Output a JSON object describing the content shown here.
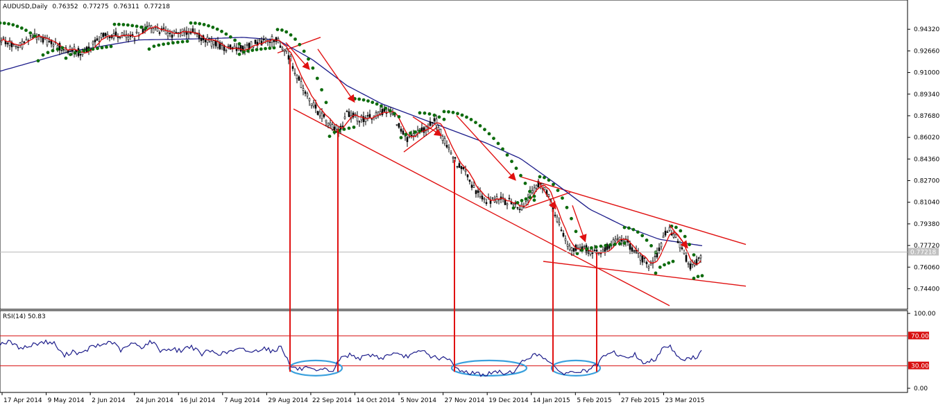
{
  "chart_data": [
    {
      "type": "candlestick",
      "header": {
        "symbol": "AUDUSD,Daily",
        "open": "0.76352",
        "high": "0.77275",
        "low": "0.76311",
        "close": "0.77218"
      },
      "last_price_tag": "0.77218",
      "y_ticks": [
        "0.94320",
        "0.92660",
        "0.91000",
        "0.89340",
        "0.87680",
        "0.86020",
        "0.84360",
        "0.82700",
        "0.81040",
        "0.79380",
        "0.77720",
        "0.76060",
        "0.74400"
      ],
      "ylim": [
        0.7304,
        0.9614
      ],
      "x_ticks": [
        "17 Apr 2014",
        "9 May 2014",
        "2 Jun 2014",
        "24 Jun 2014",
        "16 Jul 2014",
        "7 Aug 2014",
        "29 Aug 2014",
        "22 Sep 2014",
        "14 Oct 2014",
        "5 Nov 2014",
        "27 Nov 2014",
        "19 Dec 2014",
        "14 Jan 2015",
        "5 Feb 2015",
        "27 Feb 2015",
        "23 Mar 2015"
      ],
      "price_anchors": [
        [
          0,
          0.936
        ],
        [
          25,
          0.929
        ],
        [
          48,
          0.938
        ],
        [
          72,
          0.933
        ],
        [
          95,
          0.928
        ],
        [
          120,
          0.925
        ],
        [
          145,
          0.937
        ],
        [
          165,
          0.939
        ],
        [
          190,
          0.936
        ],
        [
          210,
          0.945
        ],
        [
          232,
          0.942
        ],
        [
          252,
          0.939
        ],
        [
          275,
          0.942
        ],
        [
          300,
          0.934
        ],
        [
          325,
          0.929
        ],
        [
          350,
          0.928
        ],
        [
          372,
          0.933
        ],
        [
          395,
          0.936
        ],
        [
          410,
          0.929
        ],
        [
          418,
          0.921
        ],
        [
          430,
          0.905
        ],
        [
          445,
          0.89
        ],
        [
          460,
          0.879
        ],
        [
          475,
          0.87
        ],
        [
          490,
          0.866
        ],
        [
          500,
          0.878
        ],
        [
          520,
          0.874
        ],
        [
          540,
          0.876
        ],
        [
          555,
          0.882
        ],
        [
          570,
          0.875
        ],
        [
          585,
          0.858
        ],
        [
          600,
          0.862
        ],
        [
          615,
          0.868
        ],
        [
          628,
          0.873
        ],
        [
          640,
          0.858
        ],
        [
          655,
          0.843
        ],
        [
          670,
          0.833
        ],
        [
          685,
          0.82
        ],
        [
          700,
          0.812
        ],
        [
          720,
          0.812
        ],
        [
          740,
          0.81
        ],
        [
          752,
          0.806
        ],
        [
          765,
          0.817
        ],
        [
          778,
          0.825
        ],
        [
          790,
          0.817
        ],
        [
          800,
          0.8
        ],
        [
          812,
          0.787
        ],
        [
          822,
          0.774
        ],
        [
          835,
          0.777
        ],
        [
          850,
          0.773
        ],
        [
          862,
          0.771
        ],
        [
          875,
          0.776
        ],
        [
          890,
          0.782
        ],
        [
          905,
          0.779
        ],
        [
          920,
          0.77
        ],
        [
          935,
          0.762
        ],
        [
          948,
          0.77
        ],
        [
          962,
          0.79
        ],
        [
          975,
          0.784
        ],
        [
          985,
          0.77
        ],
        [
          995,
          0.762
        ],
        [
          1005,
          0.765
        ],
        [
          1012,
          0.772
        ]
      ],
      "sma_anchors": [
        [
          0,
          0.911
        ],
        [
          100,
          0.926
        ],
        [
          200,
          0.935
        ],
        [
          300,
          0.936
        ],
        [
          350,
          0.937
        ],
        [
          400,
          0.935
        ],
        [
          450,
          0.92
        ],
        [
          500,
          0.9
        ],
        [
          550,
          0.886
        ],
        [
          600,
          0.876
        ],
        [
          650,
          0.866
        ],
        [
          700,
          0.856
        ],
        [
          750,
          0.844
        ],
        [
          800,
          0.825
        ],
        [
          850,
          0.805
        ],
        [
          900,
          0.792
        ],
        [
          950,
          0.782
        ],
        [
          1012,
          0.777
        ]
      ],
      "sar_segments": [
        {
          "x": [
            0,
            50
          ],
          "v": [
            0.948,
            0.938
          ],
          "side": "above"
        },
        {
          "x": [
            55,
            90
          ],
          "v": [
            0.919,
            0.929
          ],
          "side": "below"
        },
        {
          "x": [
            95,
            160
          ],
          "v": [
            0.921,
            0.93
          ],
          "side": "below"
        },
        {
          "x": [
            165,
            210
          ],
          "v": [
            0.947,
            0.944
          ],
          "side": "above"
        },
        {
          "x": [
            215,
            270
          ],
          "v": [
            0.928,
            0.934
          ],
          "side": "below"
        },
        {
          "x": [
            275,
            345
          ],
          "v": [
            0.948,
            0.932
          ],
          "side": "above"
        },
        {
          "x": [
            345,
            395
          ],
          "v": [
            0.924,
            0.929
          ],
          "side": "below"
        },
        {
          "x": [
            400,
            470
          ],
          "v": [
            0.943,
            0.887
          ],
          "side": "above"
        },
        {
          "x": [
            475,
            510
          ],
          "v": [
            0.861,
            0.868
          ],
          "side": "below"
        },
        {
          "x": [
            505,
            575
          ],
          "v": [
            0.89,
            0.876
          ],
          "side": "above"
        },
        {
          "x": [
            578,
            605
          ],
          "v": [
            0.86,
            0.865
          ],
          "side": "below"
        },
        {
          "x": [
            605,
            640
          ],
          "v": [
            0.879,
            0.874
          ],
          "side": "above"
        },
        {
          "x": [
            640,
            770
          ],
          "v": [
            0.88,
            0.812
          ],
          "side": "above"
        },
        {
          "x": [
            740,
            770
          ],
          "v": [
            0.806,
            0.815
          ],
          "side": "below"
        },
        {
          "x": [
            778,
            830
          ],
          "v": [
            0.83,
            0.788
          ],
          "side": "above"
        },
        {
          "x": [
            832,
            900
          ],
          "v": [
            0.771,
            0.779
          ],
          "side": "below"
        },
        {
          "x": [
            900,
            945
          ],
          "v": [
            0.791,
            0.772
          ],
          "side": "above"
        },
        {
          "x": [
            945,
            970
          ],
          "v": [
            0.756,
            0.765
          ],
          "side": "below"
        },
        {
          "x": [
            968,
            1000
          ],
          "v": [
            0.792,
            0.77
          ],
          "side": "above"
        },
        {
          "x": [
            1000,
            1012
          ],
          "v": [
            0.752,
            0.754
          ],
          "side": "below"
        }
      ],
      "annotations": {
        "trend_lines": [
          {
            "x1": 423,
            "v1": 0.882,
            "x2": 965,
            "v2": 0.731
          },
          {
            "x1": 750,
            "v1": 0.83,
            "x2": 1075,
            "v2": 0.778
          },
          {
            "x1": 783,
            "v1": 0.765,
            "x2": 1075,
            "v2": 0.746
          },
          {
            "x1": 400,
            "v1": 0.925,
            "x2": 462,
            "v2": 0.937
          },
          {
            "x1": 582,
            "v1": 0.849,
            "x2": 630,
            "v2": 0.868
          },
          {
            "x1": 757,
            "v1": 0.806,
            "x2": 822,
            "v2": 0.818
          }
        ],
        "arrows": [
          {
            "x1": 458,
            "v1": 0.928,
            "x2": 510,
            "v2": 0.888
          },
          {
            "x1": 412,
            "v1": 0.933,
            "x2": 445,
            "v2": 0.913
          },
          {
            "x1": 595,
            "v1": 0.876,
            "x2": 635,
            "v2": 0.862
          },
          {
            "x1": 658,
            "v1": 0.877,
            "x2": 742,
            "v2": 0.828
          },
          {
            "x1": 775,
            "v1": 0.827,
            "x2": 800,
            "v2": 0.806
          },
          {
            "x1": 825,
            "v1": 0.808,
            "x2": 843,
            "v2": 0.781
          },
          {
            "x1": 965,
            "v1": 0.793,
            "x2": 990,
            "v2": 0.776
          }
        ],
        "vertical_markers_x": [
          418,
          487,
          655,
          797,
          860
        ]
      }
    },
    {
      "type": "line",
      "label": "RSI(14) 50.83",
      "y_ticks": [
        "100.00",
        "0.00"
      ],
      "ylim": [
        0,
        100
      ],
      "levels": [
        {
          "value": 70,
          "tag": "70.00"
        },
        {
          "value": 30,
          "tag": "30.00"
        }
      ],
      "rsi_anchors": [
        [
          0,
          60
        ],
        [
          15,
          62
        ],
        [
          25,
          55
        ],
        [
          40,
          55
        ],
        [
          52,
          60
        ],
        [
          65,
          62
        ],
        [
          78,
          60
        ],
        [
          92,
          43
        ],
        [
          105,
          50
        ],
        [
          118,
          45
        ],
        [
          130,
          55
        ],
        [
          145,
          57
        ],
        [
          160,
          63
        ],
        [
          175,
          50
        ],
        [
          190,
          60
        ],
        [
          205,
          55
        ],
        [
          218,
          63
        ],
        [
          232,
          50
        ],
        [
          245,
          53
        ],
        [
          260,
          50
        ],
        [
          275,
          57
        ],
        [
          290,
          45
        ],
        [
          300,
          50
        ],
        [
          320,
          46
        ],
        [
          335,
          50
        ],
        [
          350,
          52
        ],
        [
          365,
          48
        ],
        [
          380,
          55
        ],
        [
          395,
          48
        ],
        [
          405,
          58
        ],
        [
          418,
          30
        ],
        [
          430,
          25
        ],
        [
          440,
          27
        ],
        [
          455,
          22
        ],
        [
          470,
          25
        ],
        [
          480,
          23
        ],
        [
          490,
          40
        ],
        [
          505,
          45
        ],
        [
          520,
          40
        ],
        [
          535,
          45
        ],
        [
          550,
          40
        ],
        [
          565,
          47
        ],
        [
          580,
          42
        ],
        [
          595,
          45
        ],
        [
          610,
          50
        ],
        [
          620,
          43
        ],
        [
          635,
          40
        ],
        [
          648,
          38
        ],
        [
          655,
          28
        ],
        [
          670,
          22
        ],
        [
          685,
          20
        ],
        [
          700,
          18
        ],
        [
          715,
          22
        ],
        [
          730,
          20
        ],
        [
          745,
          25
        ],
        [
          752,
          35
        ],
        [
          765,
          43
        ],
        [
          778,
          45
        ],
        [
          790,
          38
        ],
        [
          800,
          25
        ],
        [
          815,
          20
        ],
        [
          830,
          22
        ],
        [
          845,
          23
        ],
        [
          860,
          30
        ],
        [
          870,
          42
        ],
        [
          885,
          48
        ],
        [
          900,
          40
        ],
        [
          915,
          45
        ],
        [
          930,
          32
        ],
        [
          945,
          40
        ],
        [
          955,
          55
        ],
        [
          965,
          57
        ],
        [
          975,
          45
        ],
        [
          985,
          38
        ],
        [
          995,
          40
        ],
        [
          1005,
          42
        ],
        [
          1012,
          50.83
        ]
      ],
      "oversold_ellipses": [
        {
          "cx": 455,
          "rx": 38
        },
        {
          "cx": 705,
          "rx": 54
        },
        {
          "cx": 830,
          "rx": 35
        }
      ]
    }
  ],
  "colors": {
    "candles": "#000000",
    "sar": "#0d6b0d",
    "sma": "#1c1c8a",
    "fast_ma": "#e01010",
    "annotation": "#e01010",
    "rsi": "#1c1c8a",
    "level_line": "#d81010",
    "ellipse": "#3aa0dd",
    "price_tag_bg": "#c0c0c0"
  }
}
